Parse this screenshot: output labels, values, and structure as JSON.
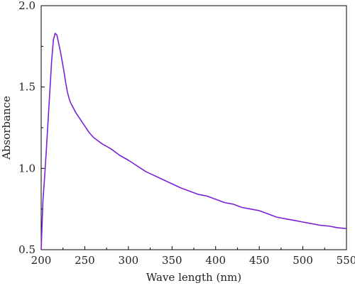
{
  "chart_data": {
    "type": "line",
    "title": "",
    "xlabel": "Wave length (nm)",
    "ylabel": "Absorbance",
    "xlim": [
      200,
      550
    ],
    "ylim": [
      0.5,
      2.0
    ],
    "xticks": [
      "200",
      "250",
      "300",
      "350",
      "400",
      "450",
      "500",
      "550"
    ],
    "yticks": [
      "0.5",
      "1.0",
      "1.5",
      "2.0"
    ],
    "grid": false,
    "legend": "none",
    "line_color": "#7b22d6",
    "series": [
      {
        "x": [
          200,
          202,
          204,
          206,
          208,
          210,
          212,
          214,
          216,
          218,
          220,
          222,
          224,
          226,
          228,
          230,
          232,
          234,
          236,
          238,
          240,
          245,
          250,
          255,
          260,
          265,
          270,
          280,
          290,
          300,
          320,
          340,
          360,
          380,
          390,
          400,
          410,
          420,
          430,
          440,
          450,
          460,
          470,
          480,
          490,
          500,
          510,
          520,
          530,
          540,
          550
        ],
        "y": [
          0.5,
          0.8,
          0.95,
          1.12,
          1.3,
          1.48,
          1.66,
          1.79,
          1.83,
          1.82,
          1.77,
          1.72,
          1.66,
          1.6,
          1.53,
          1.47,
          1.43,
          1.4,
          1.38,
          1.36,
          1.34,
          1.3,
          1.26,
          1.22,
          1.19,
          1.17,
          1.15,
          1.12,
          1.08,
          1.05,
          0.98,
          0.93,
          0.88,
          0.84,
          0.83,
          0.81,
          0.79,
          0.78,
          0.76,
          0.75,
          0.74,
          0.72,
          0.7,
          0.69,
          0.68,
          0.67,
          0.66,
          0.65,
          0.645,
          0.635,
          0.63
        ]
      }
    ]
  }
}
